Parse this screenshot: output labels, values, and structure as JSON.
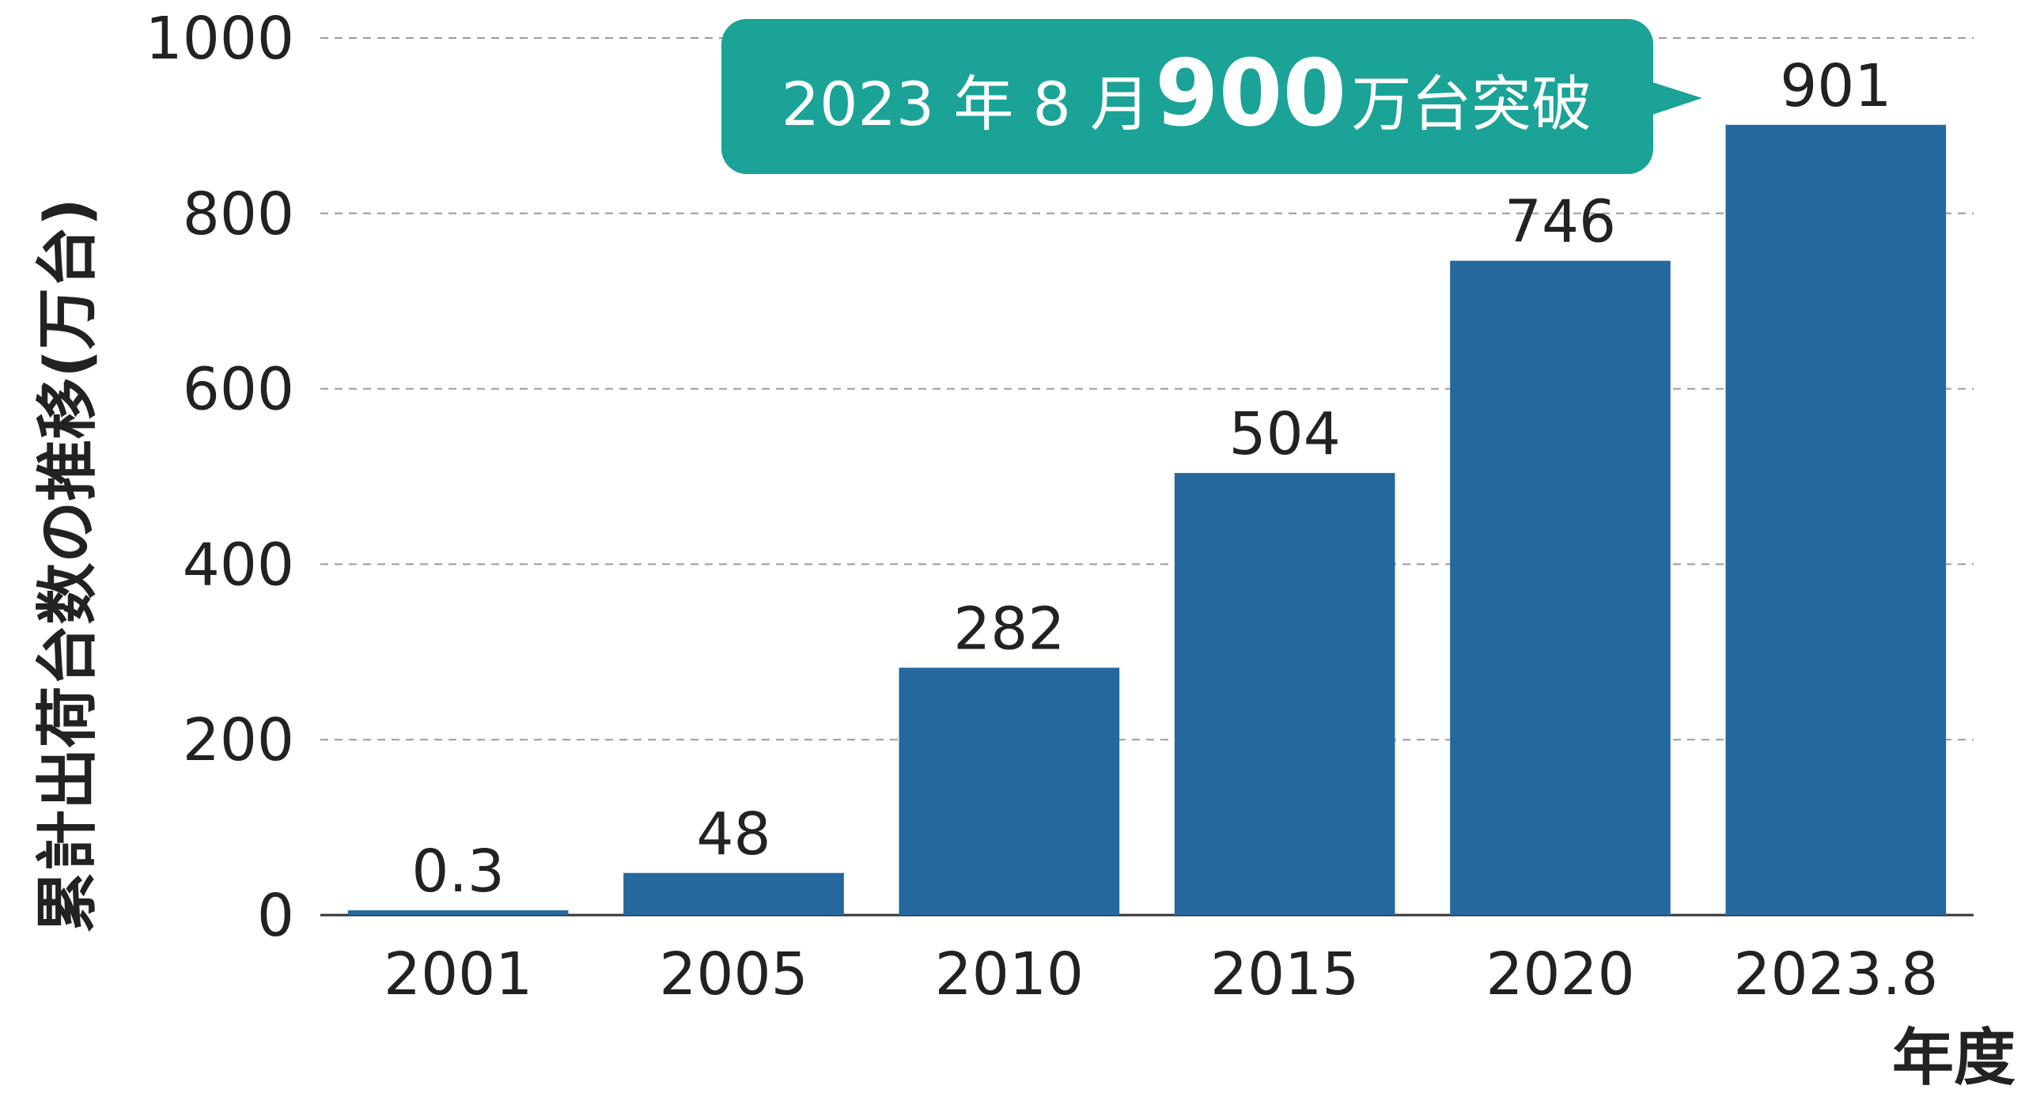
{
  "chart_data": {
    "type": "bar",
    "categories": [
      "2001",
      "2005",
      "2010",
      "2015",
      "2020",
      "2023.8"
    ],
    "values": [
      0.3,
      48,
      282,
      504,
      746,
      901
    ],
    "value_labels": [
      "0.3",
      "48",
      "282",
      "504",
      "746",
      "901"
    ],
    "ylabel": "累計出荷台数の推移(万台)",
    "xlabel": "年度",
    "ylim": [
      0,
      1000
    ],
    "yticks": [
      0,
      200,
      400,
      600,
      800,
      1000
    ],
    "grid": true,
    "bar_color": "#25689e",
    "annotation": {
      "prefix": "2023 年 8 月",
      "emphasis": "900",
      "suffix": "万台突破",
      "color": "#1aa396",
      "points_to": "2023.8"
    }
  }
}
